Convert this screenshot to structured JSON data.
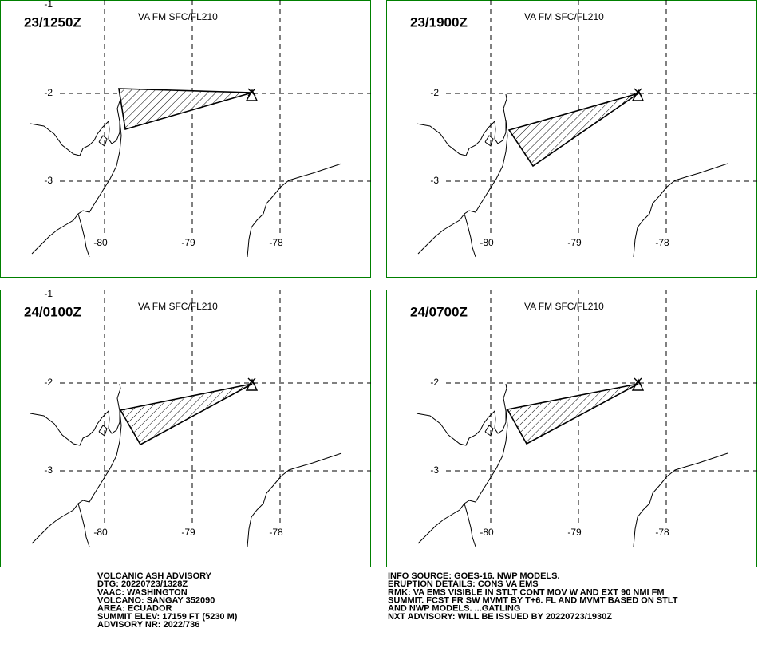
{
  "panels": [
    {
      "time": "23/1250Z",
      "level": "VA FM SFC/FL210",
      "lat_labels": [
        "-1",
        "-2",
        "-3"
      ],
      "lon_labels": [
        "-80",
        "-79",
        "-78"
      ]
    },
    {
      "time": "23/1900Z",
      "level": "VA FM SFC/FL210",
      "lat_labels": [
        "-2",
        "-3"
      ],
      "lon_labels": [
        "-80",
        "-79",
        "-78"
      ]
    },
    {
      "time": "24/0100Z",
      "level": "VA FM SFC/FL210",
      "lat_labels": [
        "-1",
        "-2",
        "-3"
      ],
      "lon_labels": [
        "-80",
        "-79",
        "-78"
      ]
    },
    {
      "time": "24/0700Z",
      "level": "VA FM SFC/FL210",
      "lat_labels": [
        "-2",
        "-3"
      ],
      "lon_labels": [
        "-80",
        "-79",
        "-78"
      ]
    }
  ],
  "advisory": {
    "left": [
      "VOLCANIC ASH ADVISORY",
      "DTG: 20220723/1328Z",
      "VAAC: WASHINGTON",
      "VOLCANO: SANGAY 352090",
      "AREA: ECUADOR",
      "SUMMIT ELEV: 17159 FT (5230 M)",
      "ADVISORY NR: 2022/736"
    ],
    "right": [
      "INFO SOURCE: GOES-16. NWP MODELS.",
      "ERUPTION DETAILS: CONS VA EMS",
      "RMK: VA EMS VISIBLE IN STLT CONT MOV W AND EXT 90 NMI FM",
      "SUMMIT. FCST FR SW MVMT BY T+6. FL AND MVMT BASED ON STLT",
      "AND NWP MODELS. ...GATLING",
      "NXT ADVISORY: WILL BE ISSUED BY 20220723/1930Z"
    ]
  }
}
